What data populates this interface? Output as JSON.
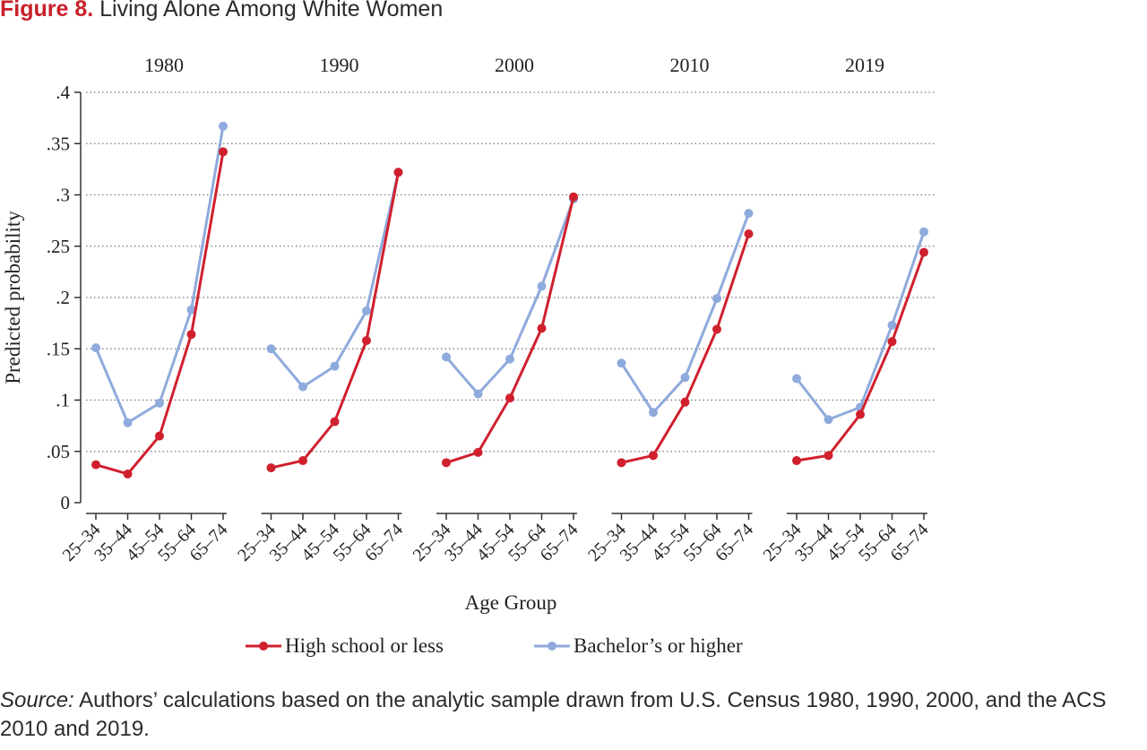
{
  "figure": {
    "label": "Figure 8.",
    "title": "Living Alone Among White Women"
  },
  "chart_data": {
    "type": "line",
    "ylabel": "Predicted probability",
    "xlabel": "Age Group",
    "ylim": [
      0,
      0.4
    ],
    "yticks": [
      0,
      0.05,
      0.1,
      0.15,
      0.2,
      0.25,
      0.3,
      0.35,
      0.4
    ],
    "ytick_labels": [
      "0",
      ".05",
      ".1",
      ".15",
      ".2",
      ".25",
      ".3",
      ".35",
      ".4"
    ],
    "categories": [
      "25–34",
      "35–44",
      "45–54",
      "55–64",
      "65–74"
    ],
    "grid": "horizontal dotted",
    "legend_position": "bottom",
    "colors": {
      "high_school": "#d0202e",
      "bachelors": "#8faadc",
      "grid": "#777777",
      "axis": "#333333"
    },
    "series_names": [
      "High school or less",
      "Bachelor’s or higher"
    ],
    "panels": [
      {
        "title": "1980",
        "high_school": [
          0.037,
          0.028,
          0.065,
          0.164,
          0.342
        ],
        "bachelors": [
          0.151,
          0.078,
          0.097,
          0.188,
          0.367
        ]
      },
      {
        "title": "1990",
        "high_school": [
          0.034,
          0.041,
          0.079,
          0.158,
          0.322
        ],
        "bachelors": [
          0.15,
          0.113,
          0.133,
          0.187,
          0.322
        ]
      },
      {
        "title": "2000",
        "high_school": [
          0.039,
          0.049,
          0.102,
          0.17,
          0.298
        ],
        "bachelors": [
          0.142,
          0.106,
          0.14,
          0.211,
          0.296
        ]
      },
      {
        "title": "2010",
        "high_school": [
          0.039,
          0.046,
          0.098,
          0.169,
          0.262
        ],
        "bachelors": [
          0.136,
          0.088,
          0.122,
          0.199,
          0.282
        ]
      },
      {
        "title": "2019",
        "high_school": [
          0.041,
          0.046,
          0.086,
          0.157,
          0.244
        ],
        "bachelors": [
          0.121,
          0.081,
          0.093,
          0.173,
          0.264
        ]
      }
    ]
  },
  "source": {
    "label": "Source:",
    "text": " Authors’ calculations based on the analytic sample drawn from U.S. Census 1980, 1990, 2000, and the ACS 2010 and 2019."
  }
}
